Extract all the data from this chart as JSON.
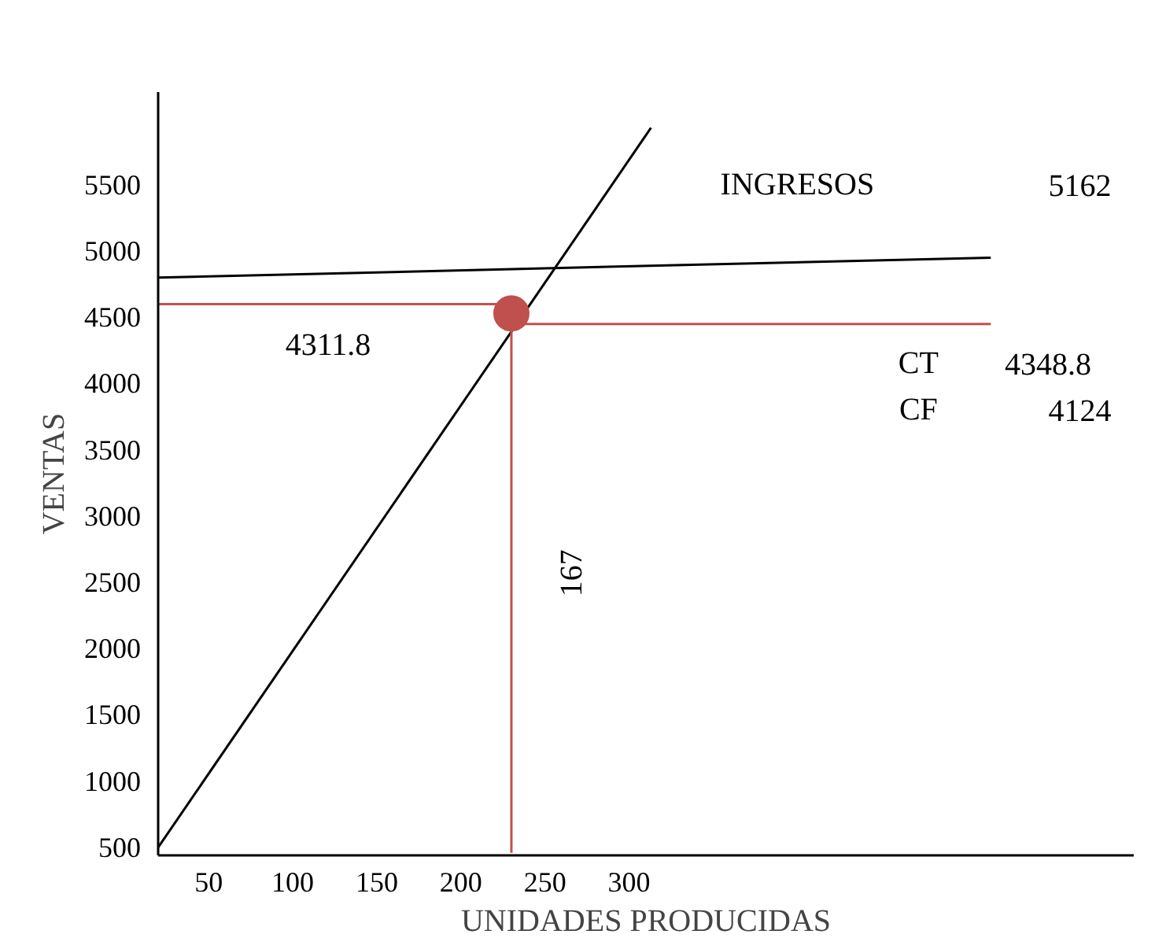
{
  "chart_data": {
    "type": "line",
    "xlabel": "UNIDADES PRODUCIDAS",
    "ylabel": "VENTAS",
    "xlim": [
      20,
      600
    ],
    "ylim": [
      440,
      6200
    ],
    "xticks": [
      50,
      100,
      150,
      200,
      250,
      300
    ],
    "yticks": [
      500,
      1000,
      1500,
      2000,
      2500,
      3000,
      3500,
      4000,
      4500,
      5000,
      5500
    ],
    "grid": false,
    "line_style": "solid",
    "series": [
      {
        "color": "#000000",
        "x": [
          20,
          313
        ],
        "values": [
          500,
          5930
        ]
      },
      {
        "color": "#000000",
        "x": [
          20,
          515
        ],
        "values": [
          4800,
          4950
        ]
      },
      {
        "color": "#c0504d",
        "x": [
          20,
          230
        ],
        "values": [
          4600,
          4600
        ]
      },
      {
        "color": "#c0504d",
        "x": [
          230,
          515
        ],
        "values": [
          4450,
          4450
        ]
      },
      {
        "color": "#c0504d",
        "x": [
          230,
          230
        ],
        "values": [
          4450,
          460
        ]
      },
      {
        "type": "scatter",
        "marker": "circle",
        "color": "#c0504d",
        "x": [
          230
        ],
        "values": [
          4530
        ]
      }
    ],
    "annotations": [
      "4311.8",
      "167",
      "INGRESOS",
      "5162",
      "CT",
      "4348.8",
      "CF",
      "4124"
    ]
  }
}
